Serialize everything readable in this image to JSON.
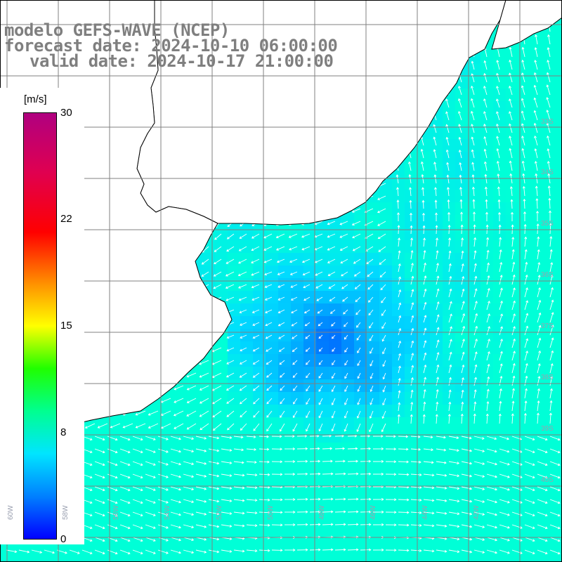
{
  "title": {
    "line1": "modelo GEFS-WAVE (NCEP)",
    "line2": "forecast date: 2024-10-10 06:00:00",
    "line3": "valid date: 2024-10-17 21:00:00"
  },
  "colorbar": {
    "unit": "[m/s]",
    "min": 0,
    "max": 30,
    "ticks": [
      "30",
      "22",
      "15",
      "8",
      "0"
    ],
    "tick_values": [
      30,
      22,
      15,
      8,
      0
    ],
    "colors": [
      "#0000ff",
      "#0080ff",
      "#00e5ff",
      "#00ff90",
      "#20ff00",
      "#ffff00",
      "#ff9000",
      "#ff0000",
      "#e00050",
      "#b00080"
    ]
  },
  "map": {
    "field": "wind speed",
    "land_color": "#ffffff",
    "coast_color": "#000000",
    "grid_color": "#808080",
    "lon_labels": [
      "60W",
      "58W",
      "56W",
      "54W",
      "52W",
      "50W",
      "48W",
      "46W",
      "44W",
      "42W"
    ],
    "lat_labels": [
      "33S",
      "34S",
      "35S",
      "36S",
      "37S",
      "38S",
      "39S",
      "40S"
    ]
  }
}
